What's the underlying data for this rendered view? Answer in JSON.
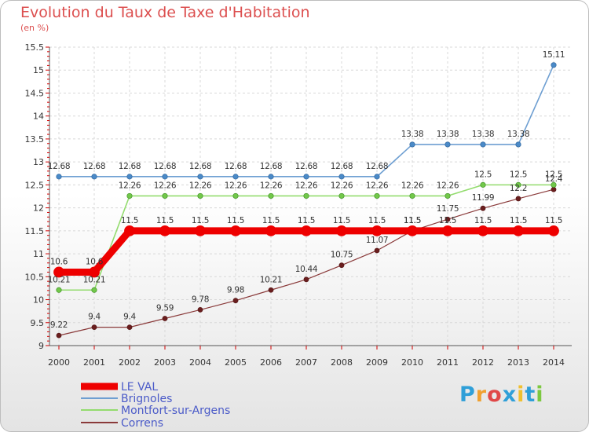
{
  "chart_data": {
    "type": "line",
    "title": "Evolution du Taux de Taxe d'Habitation",
    "unit_label": "(en %)",
    "xlabel": "",
    "ylabel": "",
    "x": [
      "2000",
      "2001",
      "2002",
      "2003",
      "2004",
      "2005",
      "2006",
      "2007",
      "2008",
      "2009",
      "2010",
      "2011",
      "2012",
      "2013",
      "2014"
    ],
    "ylim": [
      9,
      15.5
    ],
    "yticks": [
      "9",
      "9.5",
      "10",
      "10.5",
      "11",
      "11.5",
      "12",
      "12.5",
      "13",
      "13.5",
      "14",
      "14.5",
      "15",
      "15.5"
    ],
    "series": [
      {
        "name": "LE VAL",
        "color": "#ee0000",
        "values": [
          10.6,
          10.6,
          11.5,
          11.5,
          11.5,
          11.5,
          11.5,
          11.5,
          11.5,
          11.5,
          11.5,
          11.5,
          11.5,
          11.5,
          11.5
        ],
        "labels": [
          "10.6",
          "10.6",
          "11.5",
          "11.5",
          "11.5",
          "11.5",
          "11.5",
          "11.5",
          "11.5",
          "11.5",
          "11.5",
          "11.5",
          "11.5",
          "11.5",
          "11.5"
        ]
      },
      {
        "name": "Brignoles",
        "color": "#6e9fd2",
        "values": [
          12.68,
          12.68,
          12.68,
          12.68,
          12.68,
          12.68,
          12.68,
          12.68,
          12.68,
          12.68,
          13.38,
          13.38,
          13.38,
          13.38,
          15.11
        ],
        "labels": [
          "12.68",
          "12.68",
          "12.68",
          "12.68",
          "12.68",
          "12.68",
          "12.68",
          "12.68",
          "12.68",
          "12.68",
          "13.38",
          "13.38",
          "13.38",
          "13.38",
          "15.11"
        ]
      },
      {
        "name": "Montfort-sur-Argens",
        "color": "#93dc6e",
        "values": [
          10.21,
          10.21,
          12.26,
          12.26,
          12.26,
          12.26,
          12.26,
          12.26,
          12.26,
          12.26,
          12.26,
          12.26,
          12.5,
          12.5,
          12.5
        ],
        "labels": [
          "10.21",
          "10.21",
          "12.26",
          "12.26",
          "12.26",
          "12.26",
          "12.26",
          "12.26",
          "12.26",
          "12.26",
          "12.26",
          "12.26",
          "12.5",
          "12.5",
          "12.5"
        ]
      },
      {
        "name": "Correns",
        "color": "#8a3a3a",
        "values": [
          9.22,
          9.4,
          9.4,
          9.59,
          9.78,
          9.98,
          10.21,
          10.44,
          10.75,
          11.07,
          11.5,
          11.75,
          11.99,
          12.2,
          12.4
        ],
        "labels": [
          "9.22",
          "9.4",
          "9.4",
          "9.59",
          "9.78",
          "9.98",
          "10.21",
          "10.44",
          "10.75",
          "11.07",
          "11.5",
          "11.75",
          "11.99",
          "12.2",
          "12.4"
        ]
      }
    ]
  },
  "logo": {
    "letters": [
      "P",
      "r",
      "o",
      "x",
      "i",
      "t",
      "i"
    ],
    "colors": [
      "#2f9fd8",
      "#f0a030",
      "#e04848",
      "#2f9fd8",
      "#f0c030",
      "#2f9fd8",
      "#7cc840"
    ]
  }
}
